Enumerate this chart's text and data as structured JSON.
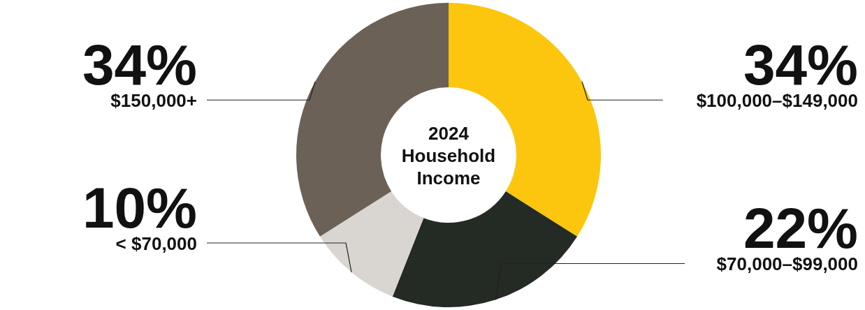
{
  "chart_data": {
    "type": "donut",
    "title": "2024 Household Income",
    "categories": [
      "$100,000–$149,000",
      "$70,000–$99,000",
      "< $70,000",
      "$150,000+"
    ],
    "values": [
      34,
      22,
      10,
      34
    ],
    "value_labels": [
      "34%",
      "22%",
      "10%",
      "34%"
    ],
    "colors": [
      "#fcc60e",
      "#242a24",
      "#d9d6d1",
      "#6b6157"
    ]
  }
}
